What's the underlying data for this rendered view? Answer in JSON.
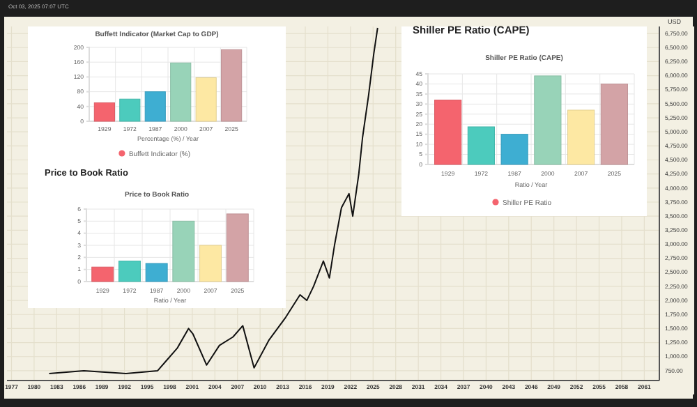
{
  "chart_data": [
    {
      "type": "line",
      "ylabel": "USD",
      "annotations": [
        "Oct 03, 2025 07:07 UTC"
      ],
      "grid": true,
      "xlim": [
        1976.4,
        2063
      ],
      "ylim": [
        575,
        6875
      ],
      "xticks": [
        1977,
        1980,
        1983,
        1986,
        1989,
        1992,
        1995,
        1998,
        2001,
        2004,
        2007,
        2010,
        2013,
        2016,
        2019,
        2022,
        2025,
        2028,
        2031,
        2034,
        2037,
        2040,
        2043,
        2046,
        2049,
        2052,
        2055,
        2058,
        2061
      ],
      "yticks": [
        {
          "value": 750,
          "label": "750.00"
        },
        {
          "value": 1000,
          "label": "1,000.00"
        },
        {
          "value": 1250,
          "label": "1,250.00"
        },
        {
          "value": 1500,
          "label": "1,500.00"
        },
        {
          "value": 1750,
          "label": "1,750.00"
        },
        {
          "value": 2000,
          "label": "2,000.00"
        },
        {
          "value": 2250,
          "label": "2,250.00"
        },
        {
          "value": 2500,
          "label": "2,500.00"
        },
        {
          "value": 2750,
          "label": "2,750.00"
        },
        {
          "value": 3000,
          "label": "3,000.00"
        },
        {
          "value": 3250,
          "label": "3,250.00"
        },
        {
          "value": 3500,
          "label": "3,500.00"
        },
        {
          "value": 3750,
          "label": "3,750.00"
        },
        {
          "value": 4000,
          "label": "4,000.00"
        },
        {
          "value": 4250,
          "label": "4,250.00"
        },
        {
          "value": 4500,
          "label": "4,500.00"
        },
        {
          "value": 4750,
          "label": "4,750.00"
        },
        {
          "value": 5000,
          "label": "5,000.00"
        },
        {
          "value": 5250,
          "label": "5,250.00"
        },
        {
          "value": 5500,
          "label": "5,500.00"
        },
        {
          "value": 5750,
          "label": "5,750.00"
        },
        {
          "value": 6000,
          "label": "6,000.00"
        },
        {
          "value": 6250,
          "label": "6,250.00"
        },
        {
          "value": 6500,
          "label": "6,500.00"
        },
        {
          "value": 6750,
          "label": "6,750.00"
        }
      ],
      "x": [
        1982,
        1986.6,
        1992.2,
        1996.4,
        1997.7,
        1999,
        2000.5,
        2001.1,
        2002.9,
        2004.6,
        2006.4,
        2007.7,
        2009.2,
        2011.2,
        2013.4,
        2015.3,
        2016.2,
        2017.1,
        2018.4,
        2019.2,
        2019.9,
        2020.8,
        2021.8,
        2022.3,
        2023.1,
        2023.6,
        2024.4,
        2025.1,
        2025.6
      ],
      "series": [
        {
          "color": "#111111",
          "values": [
            700,
            750,
            700,
            750,
            950,
            1150,
            1500,
            1400,
            850,
            1200,
            1350,
            1550,
            800,
            1300,
            1700,
            2100,
            2000,
            2250,
            2700,
            2400,
            3000,
            3650,
            3900,
            3500,
            4250,
            4900,
            5650,
            6400,
            6850
          ]
        }
      ]
    },
    {
      "type": "bar",
      "subtitle": "Buffett Indicator (Market Cap to GDP)",
      "xlabel": "Percentage (%) / Year",
      "categories": [
        "1929",
        "1972",
        "1987",
        "2000",
        "2007",
        "2025"
      ],
      "ylim": [
        0,
        200
      ],
      "yticks": [
        0,
        40,
        80,
        120,
        160,
        200
      ],
      "grid": true,
      "legend": "bottom",
      "series": [
        {
          "name": "Buffett Indicator (%)",
          "colors": [
            "#f4646e",
            "#4ccbbd",
            "#3eaed2",
            "#98d3b8",
            "#fde8a3",
            "#d3a3a6"
          ],
          "values": [
            50,
            60,
            80,
            158,
            118,
            194
          ]
        }
      ]
    },
    {
      "type": "bar",
      "title": "Shiller PE Ratio (CAPE)",
      "subtitle": "Shiller PE Ratio (CAPE)",
      "xlabel": "Ratio / Year",
      "categories": [
        "1929",
        "1972",
        "1987",
        "2000",
        "2007",
        "2025"
      ],
      "ylim": [
        0,
        45
      ],
      "yticks": [
        0,
        5,
        10,
        15,
        20,
        25,
        30,
        35,
        40,
        45
      ],
      "grid": true,
      "legend": "bottom",
      "series": [
        {
          "name": "Shiller PE Ratio",
          "colors": [
            "#f4646e",
            "#4ccbbd",
            "#3eaed2",
            "#98d3b8",
            "#fde8a3",
            "#d3a3a6"
          ],
          "values": [
            32,
            18.7,
            15,
            44,
            27,
            40
          ]
        }
      ]
    },
    {
      "type": "bar",
      "title": "Price to Book Ratio",
      "subtitle": "Price to Book Ratio",
      "xlabel": "Ratio / Year",
      "categories": [
        "1929",
        "1972",
        "1987",
        "2000",
        "2007",
        "2025"
      ],
      "ylim": [
        0,
        6
      ],
      "yticks": [
        0,
        1,
        2,
        3,
        4,
        5,
        6
      ],
      "grid": true,
      "series": [
        {
          "colors": [
            "#f4646e",
            "#4ccbbd",
            "#3eaed2",
            "#98d3b8",
            "#fde8a3",
            "#d3a3a6"
          ],
          "values": [
            1.2,
            1.7,
            1.5,
            5.0,
            3.0,
            5.6
          ]
        }
      ]
    }
  ]
}
